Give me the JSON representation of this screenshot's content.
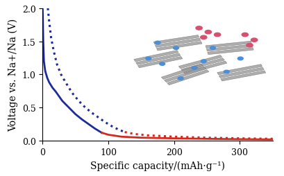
{
  "chart_data": {
    "type": "line",
    "x_label": "Specific capacity/(mAh·g⁻¹)",
    "y_label": "Voltage vs. Na+/Na (V)",
    "xlim": [
      0,
      350
    ],
    "xticks": [
      0,
      100,
      200,
      300
    ],
    "ylim": [
      0.0,
      2.0
    ],
    "yticks": [
      0.0,
      0.5,
      1.0,
      1.5,
      2.0
    ],
    "grid": false,
    "series": [
      {
        "color": "#1c2a9c",
        "line_style": "solid",
        "x": [
          0,
          1,
          2,
          4,
          7,
          10,
          15,
          20,
          30,
          40,
          50,
          60,
          70,
          80,
          90
        ],
        "values": [
          2.0,
          1.5,
          1.2,
          1.05,
          0.95,
          0.88,
          0.8,
          0.74,
          0.6,
          0.5,
          0.4,
          0.32,
          0.25,
          0.18,
          0.12
        ]
      },
      {
        "color": "#d42a1e",
        "line_style": "solid",
        "x": [
          90,
          100,
          120,
          150,
          200,
          250,
          300,
          350
        ],
        "values": [
          0.12,
          0.09,
          0.06,
          0.045,
          0.035,
          0.028,
          0.022,
          0.018
        ]
      },
      {
        "color": "#1c2a9c",
        "line_style": "dotted",
        "x": [
          8,
          10,
          13,
          17,
          22,
          28,
          35,
          45,
          55,
          65,
          75,
          85,
          95,
          105,
          115,
          125
        ],
        "values": [
          2.0,
          1.8,
          1.55,
          1.35,
          1.15,
          1.0,
          0.88,
          0.72,
          0.6,
          0.5,
          0.42,
          0.35,
          0.28,
          0.22,
          0.17,
          0.13
        ]
      },
      {
        "color": "#d42a1e",
        "line_style": "dotted",
        "x": [
          125,
          140,
          160,
          200,
          250,
          300,
          350
        ],
        "values": [
          0.13,
          0.1,
          0.08,
          0.06,
          0.045,
          0.035,
          0.028
        ]
      }
    ]
  }
}
